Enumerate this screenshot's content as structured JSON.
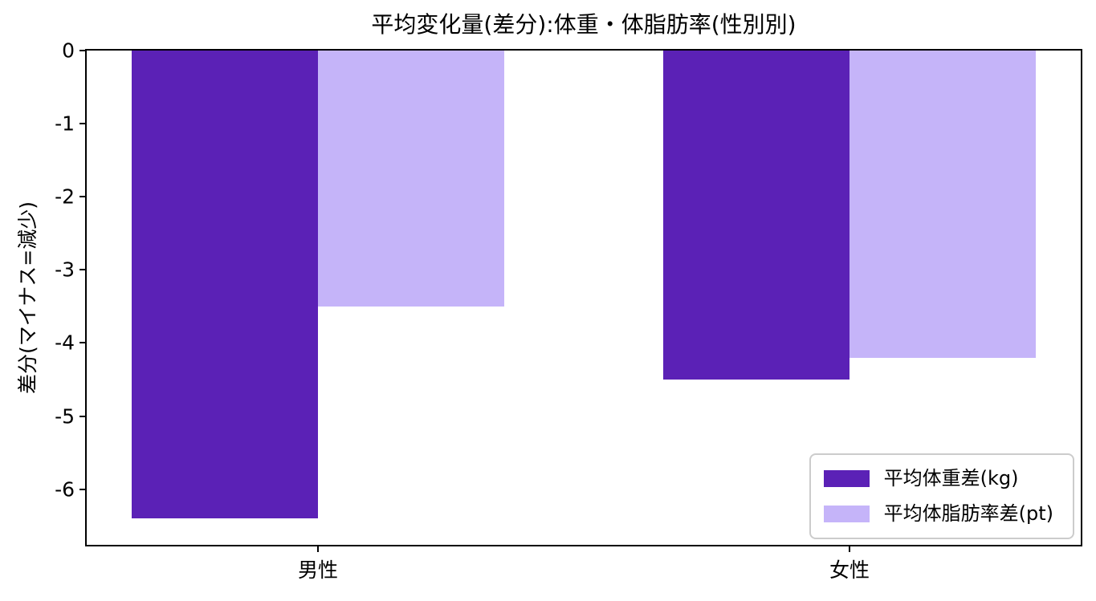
{
  "chart_data": {
    "type": "bar",
    "title": "平均変化量(差分):体重・体脂肪率(性別別)",
    "xlabel": "",
    "ylabel": "差分(マイナス=減少)",
    "categories": [
      "男性",
      "女性"
    ],
    "series": [
      {
        "name": "平均体重差(kg)",
        "color": "#5B21B6",
        "values": [
          -6.4,
          -4.5
        ]
      },
      {
        "name": "平均体脂肪率差(pt)",
        "color": "#C5B4F9",
        "values": [
          -3.5,
          -4.2
        ]
      }
    ],
    "ylim": [
      -6.76,
      0
    ],
    "xlim": [
      -0.435,
      1.435
    ],
    "yticks": [
      0,
      -1,
      -2,
      -3,
      -4,
      -5,
      -6
    ],
    "bar_width": 0.35,
    "grid": false,
    "legend_position": "lower right",
    "colors": {
      "bar_dark": "#5B21B6",
      "bar_light": "#C5B4F9",
      "axis": "#000000",
      "legend_border": "#cccccc",
      "background": "#ffffff"
    }
  }
}
